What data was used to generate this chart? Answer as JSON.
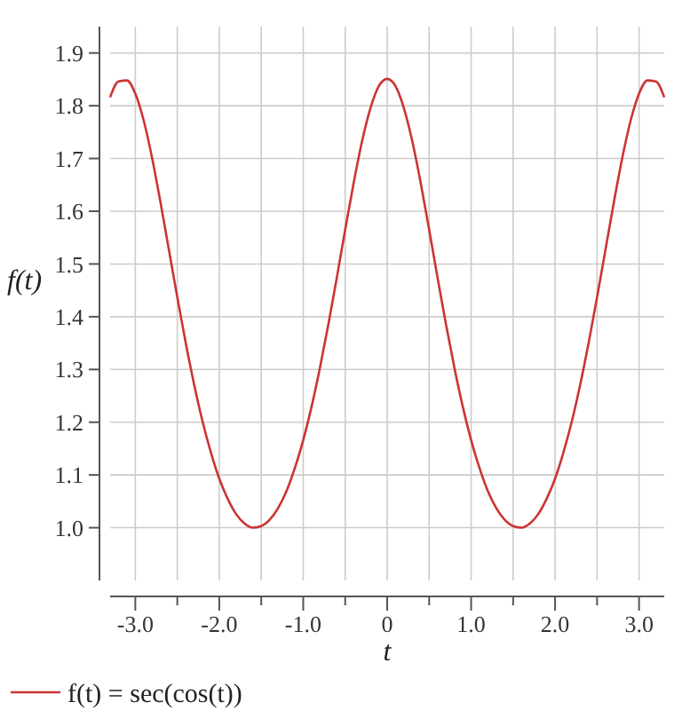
{
  "chart_data": {
    "type": "line",
    "xlabel": "t",
    "ylabel": "f(t)",
    "x": [
      -3.3,
      -3.2,
      -3.1,
      -3.0,
      -2.9,
      -2.8,
      -2.7,
      -2.6,
      -2.5,
      -2.4,
      -2.3,
      -2.2,
      -2.1,
      -2.0,
      -1.9,
      -1.8,
      -1.7,
      -1.6,
      -1.5,
      -1.4,
      -1.3,
      -1.2,
      -1.1,
      -1.0,
      -0.9,
      -0.8,
      -0.7,
      -0.6,
      -0.5,
      -0.4,
      -0.3,
      -0.2,
      -0.1,
      0,
      0.1,
      0.2,
      0.3,
      0.4,
      0.5,
      0.6,
      0.7,
      0.8,
      0.9,
      1.0,
      1.1,
      1.2,
      1.3,
      1.4,
      1.5,
      1.6,
      1.7,
      1.8,
      1.9,
      2.0,
      2.1,
      2.2,
      2.3,
      2.4,
      2.5,
      2.6,
      2.7,
      2.8,
      2.9,
      3.0,
      3.1,
      3.2,
      3.3
    ],
    "series": [
      {
        "name": "f(t) = sec(cos(t))",
        "color": "#cc3333",
        "values": [
          1.816,
          1.846,
          1.848,
          1.823,
          1.772,
          1.701,
          1.617,
          1.527,
          1.437,
          1.351,
          1.272,
          1.202,
          1.143,
          1.093,
          1.055,
          1.026,
          1.008,
          1.0,
          1.003,
          1.015,
          1.037,
          1.069,
          1.113,
          1.166,
          1.23,
          1.304,
          1.386,
          1.474,
          1.565,
          1.653,
          1.732,
          1.795,
          1.837,
          1.851,
          1.837,
          1.795,
          1.732,
          1.653,
          1.565,
          1.474,
          1.386,
          1.304,
          1.23,
          1.166,
          1.113,
          1.069,
          1.037,
          1.015,
          1.003,
          1.0,
          1.008,
          1.026,
          1.055,
          1.093,
          1.143,
          1.202,
          1.272,
          1.351,
          1.437,
          1.527,
          1.617,
          1.701,
          1.772,
          1.823,
          1.848,
          1.846,
          1.816
        ]
      }
    ],
    "xlim": [
      -3.3,
      3.3
    ],
    "ylim": [
      0.9,
      1.95
    ],
    "xticks": [
      {
        "value": -3,
        "label": "-3.0"
      },
      {
        "value": -2.5,
        "label": null
      },
      {
        "value": -2,
        "label": "-2.0"
      },
      {
        "value": -1.5,
        "label": null
      },
      {
        "value": -1,
        "label": "-1.0"
      },
      {
        "value": -0.5,
        "label": null
      },
      0,
      {
        "value": 0.5,
        "label": null
      },
      {
        "value": 1,
        "label": "1.0"
      },
      {
        "value": 1.5,
        "label": null
      },
      {
        "value": 2,
        "label": "2.0"
      },
      {
        "value": 2.5,
        "label": null
      },
      {
        "value": 3,
        "label": "3.0"
      }
    ],
    "yticks": [
      {
        "value": 1,
        "label": "1.0"
      },
      1.1,
      1.2,
      1.3,
      1.4,
      1.5,
      1.6,
      1.7,
      1.8,
      1.9
    ],
    "grid": true,
    "legend": "bottom",
    "line_style": "solid",
    "marker": "none"
  }
}
